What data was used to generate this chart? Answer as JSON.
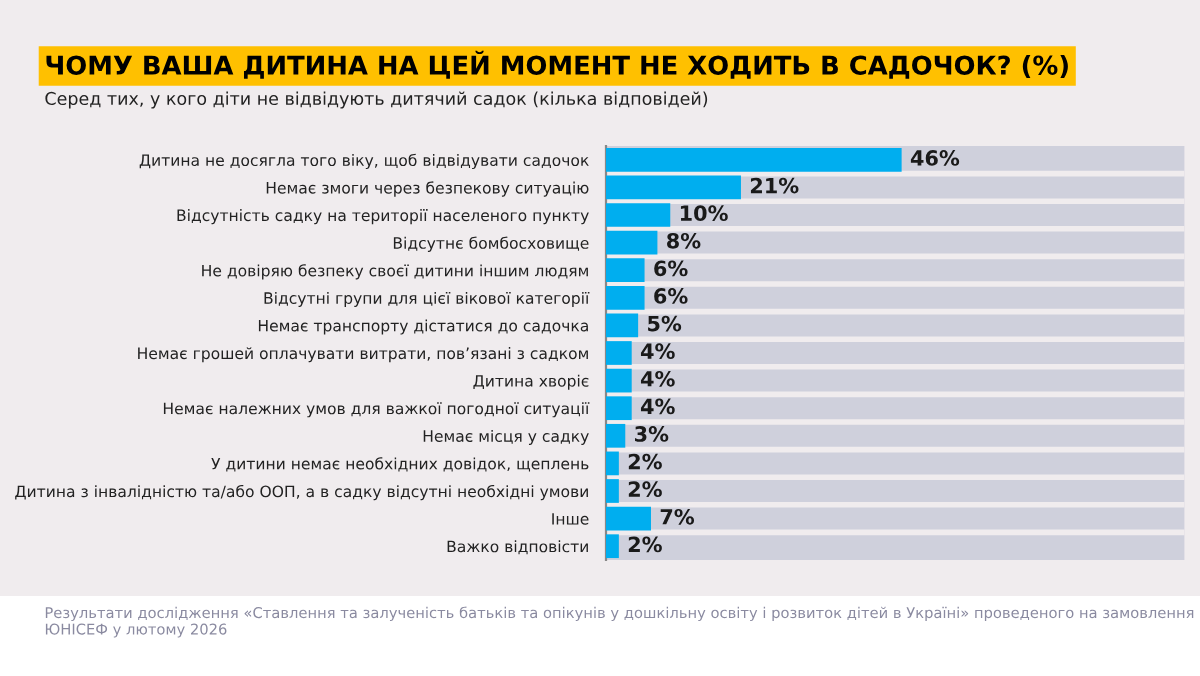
{
  "chart_data": {
    "type": "bar",
    "orientation": "horizontal",
    "title": "ЧОМУ ВАША ДИТИНА НА ЦЕЙ МОМЕНТ НЕ ХОДИТЬ В САДОЧОК? (%)",
    "subtitle": "Серед тих, у кого діти не відвідують дитячий садок (кілька відповідей)",
    "categories": [
      "Дитина не досягла того віку, щоб відвідувати садочок",
      "Немає змоги через безпекову ситуацію",
      "Відсутність садку на території населеного пункту",
      "Відсутнє бомбосховище",
      "Не довіряю безпеку своєї дитини іншим людям",
      "Відсутні групи для цієї вікової категорії",
      "Немає транспорту дістатися до садочка",
      "Немає грошей оплачувати витрати, пов’язані з садком",
      "Дитина хворіє",
      "Немає належних умов для важкої погодної ситуації",
      "Немає місця у садку",
      "У дитини немає необхідних довідок, щеплень",
      "Дитина з інвалідністю та/або ООП, а в садку відсутні необхідні умови",
      "Інше",
      "Важко відповісти"
    ],
    "values": [
      46,
      21,
      10,
      8,
      6,
      6,
      5,
      4,
      4,
      4,
      3,
      2,
      2,
      7,
      2
    ],
    "value_labels": [
      "46%",
      "21%",
      "10%",
      "8%",
      "6%",
      "6%",
      "5%",
      "4%",
      "4%",
      "4%",
      "3%",
      "2%",
      "2%",
      "7%",
      "2%"
    ],
    "color": "#00aeef",
    "xlim": [
      0,
      90
    ],
    "tick_labels": "y",
    "grid": false,
    "legend": false,
    "annotations": [
      "Результати дослідження «Ставлення та залученість батьків та опікунів у дошкільну освіту і розвиток дітей в Україні» проведеного на замовлення ЮНІСЕФ у лютому 2026"
    ]
  }
}
